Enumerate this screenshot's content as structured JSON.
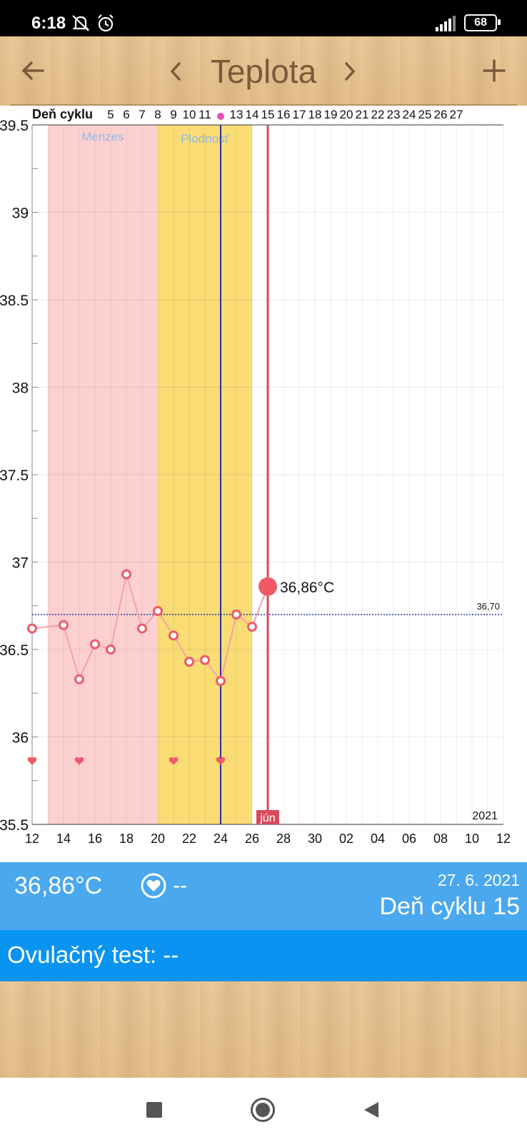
{
  "status": {
    "time": "6:18",
    "battery": "68"
  },
  "header": {
    "title": "Teplota"
  },
  "chart_data": {
    "type": "line",
    "y_ticks": [
      "39.5",
      "39",
      "38.5",
      "38",
      "37.5",
      "37",
      "36.5",
      "36",
      "35.5"
    ],
    "ylim": [
      35.5,
      39.5
    ],
    "x_tick_labels": [
      "12",
      "14",
      "16",
      "18",
      "20",
      "22",
      "24",
      "26",
      "28",
      "30",
      "02",
      "04",
      "06",
      "08",
      "10",
      "12"
    ],
    "cycle_label": "Deň cyklu",
    "cycle_days": [
      "5",
      "6",
      "7",
      "8",
      "9",
      "10",
      "11",
      "",
      "13",
      "14",
      "15",
      "16",
      "17",
      "18",
      "19",
      "20",
      "21",
      "22",
      "23",
      "24",
      "25",
      "26",
      "27"
    ],
    "menzes_label": "Menzes",
    "fertile_label": "Plodnosť",
    "points": [
      {
        "day": 12,
        "temp": 36.62
      },
      {
        "day": 14,
        "temp": 36.64
      },
      {
        "day": 15,
        "temp": 36.33
      },
      {
        "day": 16,
        "temp": 36.53
      },
      {
        "day": 17,
        "temp": 36.5
      },
      {
        "day": 18,
        "temp": 36.93
      },
      {
        "day": 19,
        "temp": 36.62
      },
      {
        "day": 20,
        "temp": 36.72
      },
      {
        "day": 21,
        "temp": 36.58
      },
      {
        "day": 22,
        "temp": 36.43
      },
      {
        "day": 23,
        "temp": 36.44
      },
      {
        "day": 24,
        "temp": 36.32
      },
      {
        "day": 25,
        "temp": 36.7
      },
      {
        "day": 26,
        "temp": 36.63
      },
      {
        "day": 27,
        "temp": 36.86
      }
    ],
    "hearts_days": [
      12,
      15,
      21,
      24
    ],
    "menzes_range": [
      13,
      20
    ],
    "fertile_range": [
      20,
      26
    ],
    "ovulation_day": 24,
    "today_day": 27,
    "baseline": 36.7,
    "baseline_label": "36,70",
    "current_label": "36,86°C",
    "month_label": "jún",
    "year_label": "2021",
    "colors": {
      "menzes": "#fdd0d0",
      "fertile": "#f9dc74",
      "point": "#ef5a66",
      "today": "#d64a5c",
      "ovulation": "#2f2f9c"
    }
  },
  "info": {
    "temp": "36,86°C",
    "heart_value": "--",
    "date": "27. 6. 2021",
    "cycle_day": "Deň cyklu 15",
    "ovulation_test": "Ovulačný test: --"
  }
}
